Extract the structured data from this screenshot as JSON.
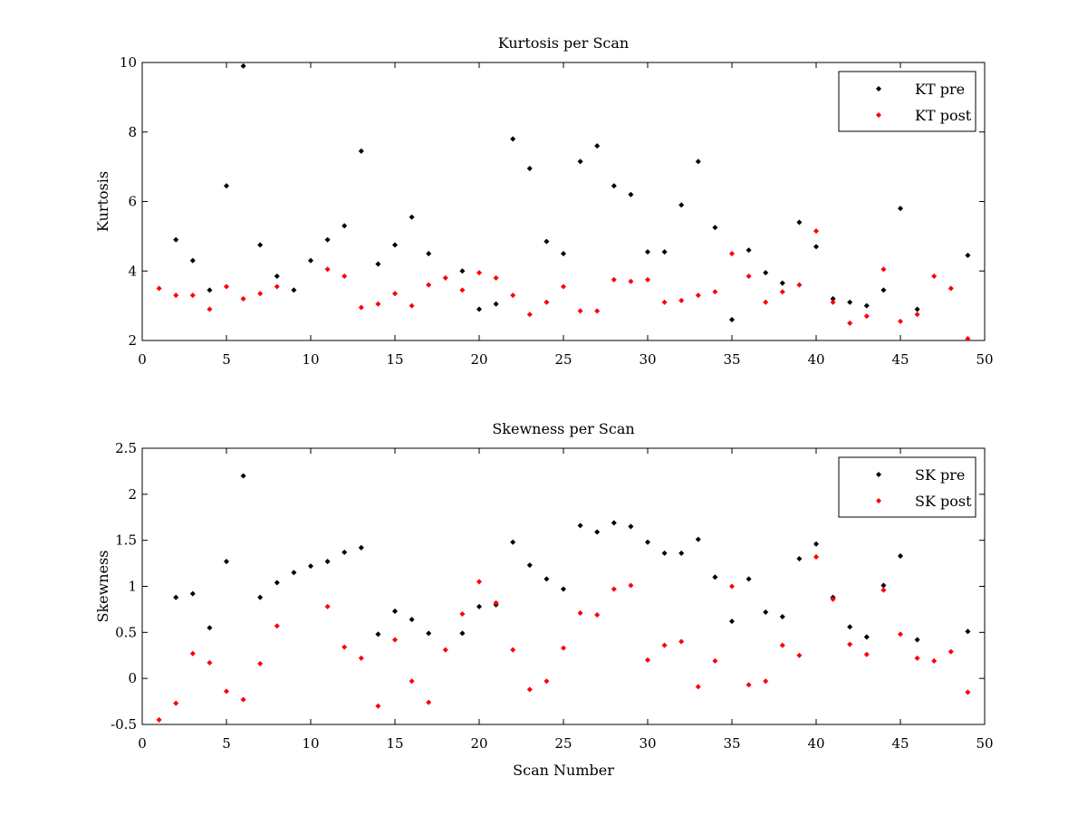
{
  "chart_data": [
    {
      "type": "scatter",
      "title": "Kurtosis per Scan",
      "xlabel": "",
      "ylabel": "Kurtosis",
      "xlim": [
        0,
        50
      ],
      "ylim": [
        2,
        10
      ],
      "xticks": [
        0,
        5,
        10,
        15,
        20,
        25,
        30,
        35,
        40,
        45,
        50
      ],
      "yticks": [
        2,
        4,
        6,
        8,
        10
      ],
      "grid": false,
      "legend_position": "top-right",
      "series": [
        {
          "name": "KT pre",
          "color": "#000000",
          "x": [
            2,
            3,
            4,
            5,
            6,
            7,
            8,
            9,
            10,
            11,
            12,
            13,
            14,
            15,
            16,
            17,
            19,
            20,
            21,
            22,
            23,
            24,
            25,
            26,
            27,
            28,
            29,
            30,
            31,
            32,
            33,
            34,
            35,
            36,
            37,
            38,
            39,
            40,
            41,
            42,
            43,
            44,
            45,
            46,
            49
          ],
          "y": [
            4.9,
            4.3,
            3.45,
            6.45,
            9.9,
            4.75,
            3.85,
            3.45,
            4.3,
            4.9,
            5.3,
            7.45,
            4.2,
            4.75,
            5.55,
            4.5,
            4.0,
            2.9,
            3.05,
            7.8,
            6.95,
            4.85,
            4.5,
            7.15,
            7.6,
            6.45,
            6.2,
            4.55,
            4.55,
            5.9,
            7.15,
            5.25,
            2.6,
            4.6,
            3.95,
            3.65,
            5.4,
            4.7,
            3.2,
            3.1,
            3.0,
            3.45,
            5.8,
            2.9,
            4.45
          ]
        },
        {
          "name": "KT post",
          "color": "#ff0000",
          "x": [
            1,
            2,
            3,
            4,
            5,
            6,
            7,
            8,
            11,
            12,
            13,
            14,
            15,
            16,
            17,
            18,
            19,
            20,
            21,
            22,
            23,
            24,
            25,
            26,
            27,
            28,
            29,
            30,
            31,
            32,
            33,
            34,
            35,
            36,
            37,
            38,
            39,
            40,
            41,
            42,
            43,
            44,
            45,
            46,
            47,
            48,
            49
          ],
          "y": [
            3.5,
            3.3,
            3.3,
            2.9,
            3.55,
            3.2,
            3.35,
            3.55,
            4.05,
            3.85,
            2.95,
            3.05,
            3.35,
            3.0,
            3.6,
            3.8,
            3.45,
            3.95,
            3.8,
            3.3,
            2.75,
            3.1,
            3.55,
            2.85,
            2.85,
            3.75,
            3.7,
            3.75,
            3.1,
            3.15,
            3.3,
            3.4,
            4.5,
            3.85,
            3.1,
            3.4,
            3.6,
            5.15,
            3.1,
            2.5,
            2.7,
            4.05,
            2.55,
            2.75,
            3.85,
            3.5,
            2.05
          ]
        }
      ]
    },
    {
      "type": "scatter",
      "title": "Skewness per Scan",
      "xlabel": "Scan Number",
      "ylabel": "Skewness",
      "xlim": [
        0,
        50
      ],
      "ylim": [
        -0.5,
        2.5
      ],
      "xticks": [
        0,
        5,
        10,
        15,
        20,
        25,
        30,
        35,
        40,
        45,
        50
      ],
      "yticks": [
        -0.5,
        0,
        0.5,
        1,
        1.5,
        2,
        2.5
      ],
      "grid": false,
      "legend_position": "top-right",
      "series": [
        {
          "name": "SK pre",
          "color": "#000000",
          "x": [
            2,
            3,
            4,
            5,
            6,
            7,
            8,
            9,
            10,
            11,
            12,
            13,
            14,
            15,
            16,
            17,
            19,
            20,
            21,
            22,
            23,
            24,
            25,
            26,
            27,
            28,
            29,
            30,
            31,
            32,
            33,
            34,
            35,
            36,
            37,
            38,
            39,
            40,
            41,
            42,
            43,
            44,
            45,
            46,
            49
          ],
          "y": [
            0.88,
            0.92,
            0.55,
            1.27,
            2.2,
            0.88,
            1.04,
            1.15,
            1.22,
            1.27,
            1.37,
            1.42,
            0.48,
            0.73,
            0.64,
            0.49,
            0.49,
            0.78,
            0.8,
            1.48,
            1.23,
            1.08,
            0.97,
            1.66,
            1.59,
            1.69,
            1.65,
            1.48,
            1.36,
            1.36,
            1.51,
            1.1,
            0.62,
            1.08,
            0.72,
            0.67,
            1.3,
            1.46,
            0.88,
            0.56,
            0.45,
            1.01,
            1.33,
            0.42,
            0.51
          ]
        },
        {
          "name": "SK post",
          "color": "#ff0000",
          "x": [
            1,
            2,
            3,
            4,
            5,
            6,
            7,
            8,
            11,
            12,
            13,
            14,
            15,
            16,
            17,
            18,
            19,
            20,
            21,
            22,
            23,
            24,
            25,
            26,
            27,
            28,
            29,
            30,
            31,
            32,
            33,
            34,
            35,
            36,
            37,
            38,
            39,
            40,
            41,
            42,
            43,
            44,
            45,
            46,
            47,
            48,
            49
          ],
          "y": [
            -0.45,
            -0.27,
            0.27,
            0.17,
            -0.14,
            -0.23,
            0.16,
            0.57,
            0.78,
            0.34,
            0.22,
            -0.3,
            0.42,
            -0.03,
            -0.26,
            0.31,
            0.7,
            1.05,
            0.82,
            0.31,
            -0.12,
            -0.03,
            0.33,
            0.71,
            0.69,
            0.97,
            1.01,
            0.2,
            0.36,
            0.4,
            -0.09,
            0.19,
            1.0,
            -0.07,
            -0.03,
            0.36,
            0.25,
            1.32,
            0.86,
            0.37,
            0.26,
            0.96,
            0.48,
            0.22,
            0.19,
            0.29,
            -0.15
          ]
        }
      ]
    }
  ]
}
